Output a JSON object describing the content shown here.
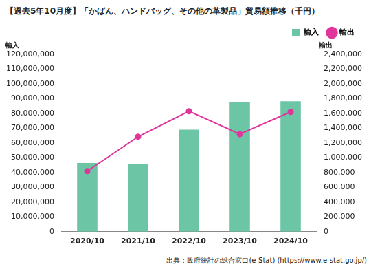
{
  "chart_data": {
    "type": "bar",
    "title": "【過去5年10月度】「かばん、ハンドバッグ、その他の革製品」貿易額推移（千円）",
    "ylabel": "輸入",
    "y2label": "輸出",
    "source": "出典：政府統計の総合窓口(e-Stat) (https://www.e-stat.go.jp/)",
    "categories": [
      "2020/10",
      "2021/10",
      "2022/10",
      "2023/10",
      "2024/10"
    ],
    "series": [
      {
        "name": "輸入",
        "type": "bar",
        "color": "#6cc5a5",
        "values": [
          46500000,
          45500000,
          69000000,
          87800000,
          88200000
        ]
      },
      {
        "name": "輸出",
        "type": "line",
        "axis": "y2",
        "color": "#e0359a",
        "marker": "circle",
        "values": [
          820000,
          1285000,
          1630000,
          1320000,
          1620000
        ]
      }
    ],
    "ylim": [
      0,
      120000000
    ],
    "yticks": [
      0,
      {
        "value": 10000000,
        "label": "10,000,000"
      },
      {
        "value": 20000000,
        "label": "20,000,000"
      },
      {
        "value": 30000000,
        "label": "30,000,000"
      },
      {
        "value": 40000000,
        "label": "40,000,000"
      },
      {
        "value": 50000000,
        "label": "50,000,000"
      },
      {
        "value": 60000000,
        "label": "60,000,000"
      },
      {
        "value": 70000000,
        "label": "70,000,000"
      },
      {
        "value": 80000000,
        "label": "80,000,000"
      },
      {
        "value": 90000000,
        "label": "90,000,000"
      },
      {
        "value": 100000000,
        "label": "100,000,000"
      },
      {
        "value": 110000000,
        "label": "110,000,000"
      },
      {
        "value": 120000000,
        "label": "120,000,000"
      }
    ],
    "y2lim": [
      0,
      2400000
    ],
    "y2ticks": [
      0,
      {
        "value": 200000,
        "label": "200,000"
      },
      {
        "value": 400000,
        "label": "400,000"
      },
      {
        "value": 600000,
        "label": "600,000"
      },
      {
        "value": 800000,
        "label": "800,000"
      },
      {
        "value": 1000000,
        "label": "1,000,000"
      },
      {
        "value": 1200000,
        "label": "1,200,000"
      },
      {
        "value": 1400000,
        "label": "1,400,000"
      },
      {
        "value": 1600000,
        "label": "1,600,000"
      },
      {
        "value": 1800000,
        "label": "1,800,000"
      },
      {
        "value": 2000000,
        "label": "2,000,000"
      },
      {
        "value": 2200000,
        "label": "2,200,000"
      },
      {
        "value": 2400000,
        "label": "2,400,000"
      }
    ],
    "grid": false,
    "legend": "top-right"
  }
}
